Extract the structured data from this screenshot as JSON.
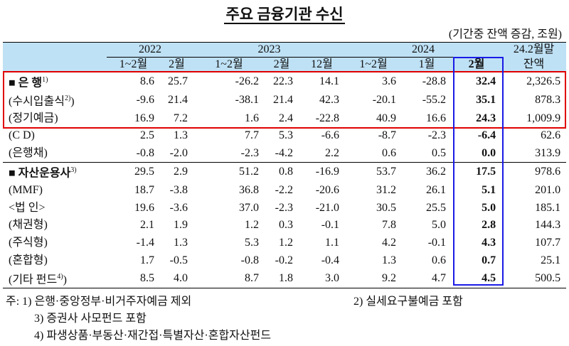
{
  "title": "주요 금융기관 수신",
  "unit": "(기간중 잔액 증감, 조원)",
  "header": {
    "groups": [
      "2022",
      "2023",
      "2024",
      "24.2월말"
    ],
    "columns": [
      "1~2월",
      "2월",
      "1~2월",
      "2월",
      "12월",
      "1~2월",
      "1월",
      "2월",
      "잔액"
    ]
  },
  "rows": [
    {
      "label": "■ 은  행",
      "note": "1)",
      "values": [
        "8.6",
        "25.7",
        "-26.2",
        "22.3",
        "14.1",
        "3.6",
        "-28.8",
        "32.4",
        "2,326.5"
      ]
    },
    {
      "label": "(수시입출식",
      "note": "2)",
      "tail": ")",
      "values": [
        "-9.6",
        "21.4",
        "-38.1",
        "21.4",
        "42.3",
        "-20.1",
        "-55.2",
        "35.1",
        "878.3"
      ]
    },
    {
      "label": "(정기예금)",
      "values": [
        "16.9",
        "7.2",
        "1.6",
        "2.4",
        "-22.8",
        "40.9",
        "16.6",
        "24.3",
        "1,009.9"
      ]
    },
    {
      "label": "(C  D)",
      "values": [
        "2.5",
        "1.3",
        "7.7",
        "5.3",
        "-6.6",
        "-8.7",
        "-2.3",
        "-6.4",
        "62.6"
      ]
    },
    {
      "label": "(은행채)",
      "values": [
        "-0.8",
        "-2.0",
        "-2.3",
        "-4.2",
        "2.2",
        "0.6",
        "0.5",
        "0.0",
        "313.9"
      ]
    },
    {
      "label": "■ 자산운용사",
      "note": "3)",
      "values": [
        "29.5",
        "2.9",
        "51.2",
        "0.8",
        "-16.9",
        "53.7",
        "36.2",
        "17.5",
        "978.6"
      ]
    },
    {
      "label": "(MMF)",
      "values": [
        "18.7",
        "-3.8",
        "36.8",
        "-2.2",
        "-20.6",
        "31.2",
        "26.1",
        "5.1",
        "201.0"
      ]
    },
    {
      "label": "<법  인>",
      "values": [
        "19.6",
        "-3.6",
        "37.0",
        "-2.3",
        "-21.0",
        "30.5",
        "25.5",
        "5.0",
        "185.1"
      ]
    },
    {
      "label": "(채권형)",
      "values": [
        "2.1",
        "1.9",
        "1.2",
        "0.3",
        "-0.1",
        "7.8",
        "5.0",
        "2.8",
        "144.3"
      ]
    },
    {
      "label": "(주식형)",
      "values": [
        "-1.4",
        "1.3",
        "5.3",
        "1.2",
        "1.1",
        "4.2",
        "-0.1",
        "4.3",
        "107.7"
      ]
    },
    {
      "label": "(혼합형)",
      "values": [
        "1.7",
        "-0.5",
        "-0.8",
        "-0.2",
        "-0.4",
        "1.3",
        "0.6",
        "0.7",
        "25.1"
      ]
    },
    {
      "label": "(기타 펀드",
      "note": "4)",
      "tail": ")",
      "values": [
        "8.5",
        "4.0",
        "8.7",
        "1.8",
        "3.0",
        "9.2",
        "4.7",
        "4.5",
        "500.5"
      ]
    }
  ],
  "footnotes": [
    "주: 1) 은행·중앙정부·비거주자예금 제외",
    "2) 실세요구불예금 포함",
    "3) 증권사 사모펀드 포함",
    "4) 파생상품·부동산·재간접·특별자산·혼합자산펀드"
  ]
}
